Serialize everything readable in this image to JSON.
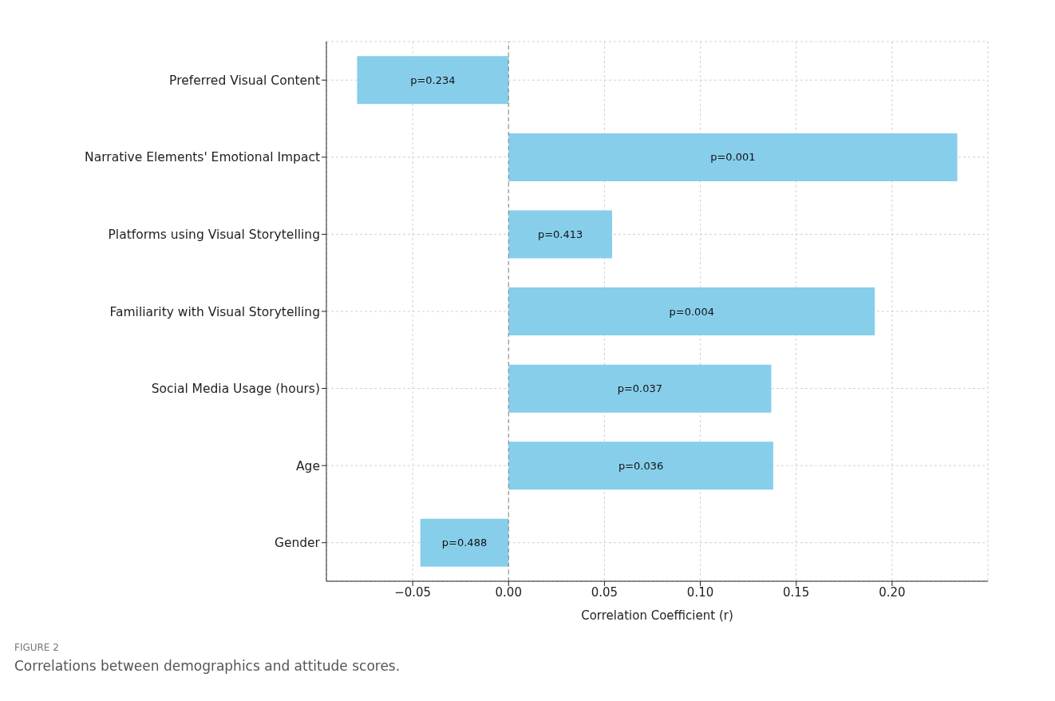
{
  "chart_data": {
    "type": "bar",
    "orientation": "horizontal",
    "xlabel": "Correlation Coefficient (r)",
    "categories": [
      "Preferred Visual Content",
      "Narrative Elements' Emotional Impact",
      "Platforms using Visual Storytelling",
      "Familiarity with Visual Storytelling",
      "Social Media Usage (hours)",
      "Age",
      "Gender"
    ],
    "values": [
      -0.079,
      0.234,
      0.054,
      0.191,
      0.137,
      0.138,
      -0.046
    ],
    "color": "#87ceeb",
    "xlim": [
      -0.095,
      0.25
    ],
    "xticks": [
      {
        "value": -0.05,
        "label": "−0.05"
      },
      {
        "value": 0,
        "label": "0.00"
      },
      {
        "value": 0.05,
        "label": "0.05"
      },
      {
        "value": 0.1,
        "label": "0.10"
      },
      {
        "value": 0.15,
        "label": "0.15"
      },
      {
        "value": 0.2,
        "label": "0.20"
      }
    ],
    "grid": true,
    "ref_lines": [
      {
        "axis": "x",
        "value": 0,
        "color": "#808080",
        "line_style": "dashed"
      }
    ],
    "annotations": [
      "p=0.234",
      "p=0.001",
      "p=0.413",
      "p=0.004",
      "p=0.037",
      "p=0.036",
      "p=0.488",
      "FIGURE 2",
      "Correlations between demographics and attitude scores."
    ]
  }
}
